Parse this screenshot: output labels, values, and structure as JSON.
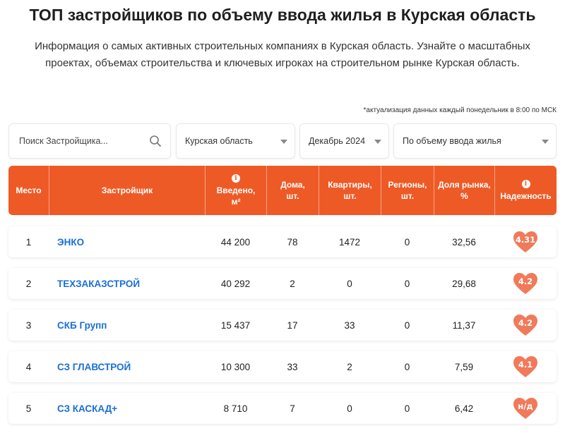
{
  "header": {
    "title": "ТОП застройщиков по объему ввода жилья в Курская область",
    "subtitle": "Информация о самых активных строительных компаниях в Курская область. Узнайте о масштабных проектах, объемах строительства и ключевых игроках на строительном рынке Курская область.",
    "update_note": "*актуализация данных каждый понедельник в 8:00 по МСК"
  },
  "filters": {
    "search_placeholder": "Поиск Застройщика...",
    "region": "Курская область",
    "month": "Декабрь 2024",
    "sort": "По объему ввода жилья"
  },
  "table": {
    "columns": {
      "place": "Место",
      "developer": "Застройщик",
      "area": "Введено, м²",
      "houses": "Дома, шт.",
      "apartments": "Квартиры, шт.",
      "regions": "Регионы, шт.",
      "share": "Доля рынка, %",
      "reliability": "Надежность"
    },
    "rows": [
      {
        "place": "1",
        "name": "ЭНКО",
        "area": "44 200",
        "houses": "78",
        "apartments": "1472",
        "regions": "0",
        "share": "32,56",
        "rating": "4.31"
      },
      {
        "place": "2",
        "name": "ТЕХЗАКАЗСТРОЙ",
        "area": "40 292",
        "houses": "2",
        "apartments": "0",
        "regions": "0",
        "share": "29,68",
        "rating": "4.2"
      },
      {
        "place": "3",
        "name": "СКБ Групп",
        "area": "15 437",
        "houses": "17",
        "apartments": "33",
        "regions": "0",
        "share": "11,37",
        "rating": "4.2"
      },
      {
        "place": "4",
        "name": "СЗ ГЛАВСТРОЙ",
        "area": "10 300",
        "houses": "33",
        "apartments": "2",
        "regions": "0",
        "share": "7,59",
        "rating": "4.1"
      },
      {
        "place": "5",
        "name": "СЗ КАСКАД+",
        "area": "8 710",
        "houses": "7",
        "apartments": "0",
        "regions": "0",
        "share": "6,42",
        "rating": "н/д"
      }
    ]
  },
  "colors": {
    "accent": "#ee5a26",
    "heart": "#f07a5a",
    "link": "#1a6fd6"
  }
}
